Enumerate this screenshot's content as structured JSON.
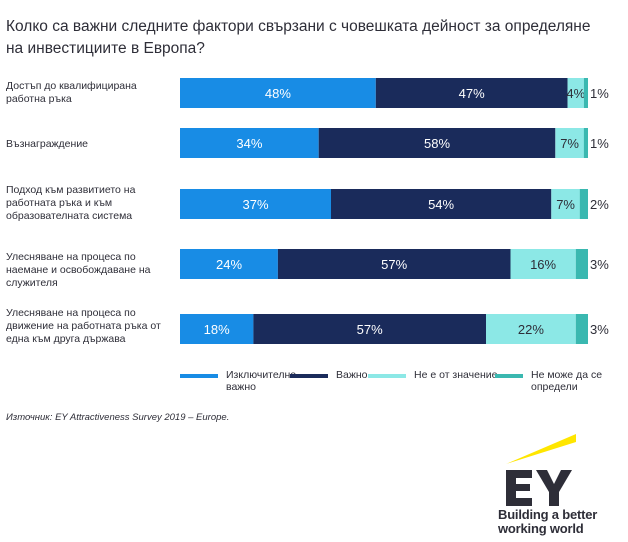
{
  "title": "Колко са важни следните фактори свързани с човешката дейност за определяне на инвестициите в Европа?",
  "chart_data": {
    "type": "bar",
    "orientation": "horizontal",
    "stacked": true,
    "title": "Колко са важни следните фактори свързани с човешката дейност за определяне на инвестициите в Европа?",
    "categories": [
      "Достъп до квалифицирана работна ръка",
      "Възнаграждение",
      "Подход към развитието на работната ръка и към образователната система",
      "Улесняване на процеса по наемане и освобождаване на служителя",
      "Улесняване на процеса по движение на работната ръка от една към друга държава"
    ],
    "series": [
      {
        "name": "Изключително важно",
        "color": "#188ce5",
        "values": [
          48,
          34,
          37,
          24,
          18
        ]
      },
      {
        "name": "Важно",
        "color": "#1a2b5b",
        "values": [
          47,
          58,
          54,
          57,
          57
        ]
      },
      {
        "name": "Не е от значение",
        "color": "#8ce8e6",
        "values": [
          4,
          7,
          7,
          16,
          22
        ]
      },
      {
        "name": "Не може да се определи",
        "color": "#3ab8b0",
        "values": [
          1,
          1,
          2,
          3,
          3
        ]
      }
    ],
    "value_suffix": "%",
    "legend_position": "bottom"
  },
  "legend": [
    {
      "label": "Изключително важно",
      "color": "#188ce5"
    },
    {
      "label": "Важно",
      "color": "#1a2b5b"
    },
    {
      "label": "Не е от значение",
      "color": "#8ce8e6"
    },
    {
      "label": "Не може да се определи",
      "color": "#3ab8b0"
    }
  ],
  "source": "Източник: EY Attractiveness Survey 2019 – Europe.",
  "logo": {
    "brand": "EY",
    "tagline_line1": "Building a better",
    "tagline_line2": "working world",
    "accent_color": "#ffe600"
  }
}
